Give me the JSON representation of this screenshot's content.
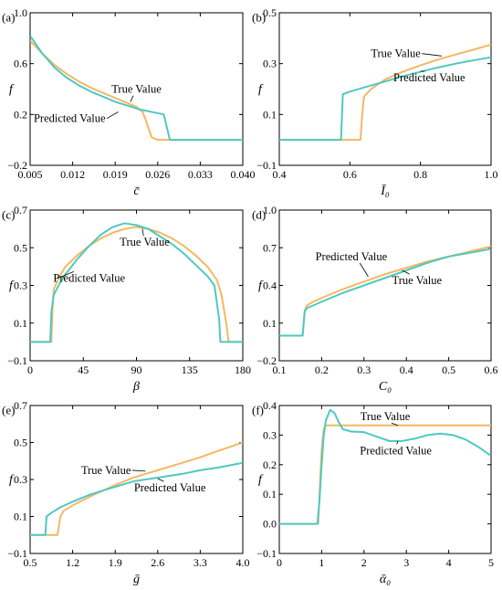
{
  "colors": {
    "true": "#f5b763",
    "predicted": "#4ec9c2",
    "axis": "#000000"
  },
  "chart_data": [
    {
      "id": "a",
      "panel_label": "(a)",
      "type": "line",
      "xlabel": "c̄",
      "ylabel": "f",
      "xlim": [
        0.005,
        0.04
      ],
      "ylim": [
        -0.2,
        1.0
      ],
      "xticks": [
        0.005,
        0.012,
        0.019,
        0.026,
        0.033,
        0.04
      ],
      "xtick_labels": [
        "0.005",
        "0.012",
        "0.019",
        "0.026",
        "0.033",
        "0.040"
      ],
      "yticks": [
        -0.2,
        0.2,
        0.6,
        1.0
      ],
      "ytick_labels": [
        "−0.2",
        "0.2",
        "0.6",
        "1.0"
      ],
      "series": [
        {
          "name": "True Value",
          "color_key": "true",
          "x": [
            0.005,
            0.007,
            0.009,
            0.011,
            0.013,
            0.015,
            0.017,
            0.019,
            0.021,
            0.0225,
            0.0235,
            0.024,
            0.025,
            0.026,
            0.027,
            0.04
          ],
          "y": [
            0.78,
            0.68,
            0.59,
            0.52,
            0.46,
            0.41,
            0.37,
            0.33,
            0.29,
            0.26,
            0.22,
            0.16,
            0.02,
            0.0,
            0.0,
            0.0
          ]
        },
        {
          "name": "Predicted Value",
          "color_key": "predicted",
          "x": [
            0.005,
            0.007,
            0.009,
            0.011,
            0.013,
            0.015,
            0.017,
            0.019,
            0.021,
            0.023,
            0.025,
            0.027,
            0.0275,
            0.028,
            0.04
          ],
          "y": [
            0.82,
            0.68,
            0.57,
            0.49,
            0.43,
            0.38,
            0.34,
            0.3,
            0.27,
            0.24,
            0.22,
            0.2,
            0.1,
            0.0,
            0.0
          ]
        }
      ],
      "annotations": [
        {
          "text": "True Value",
          "x": 0.0225,
          "y": 0.37,
          "ax": 0.0215,
          "ay": 0.3
        },
        {
          "text": "Predicted Value",
          "x": 0.0115,
          "y": 0.14,
          "ax": 0.0195,
          "ay": 0.22
        }
      ]
    },
    {
      "id": "b",
      "panel_label": "(b)",
      "type": "line",
      "xlabel": "Ī₀",
      "ylabel": "f",
      "xlim": [
        0.4,
        1.0
      ],
      "ylim": [
        -0.1,
        0.5
      ],
      "xticks": [
        0.4,
        0.6,
        0.8,
        1.0
      ],
      "xtick_labels": [
        "0.4",
        "0.6",
        "0.8",
        "1.0"
      ],
      "yticks": [
        -0.1,
        0.1,
        0.3,
        0.5
      ],
      "ytick_labels": [
        "−0.1",
        "0.1",
        "0.3",
        "0.5"
      ],
      "series": [
        {
          "name": "True Value",
          "color_key": "true",
          "x": [
            0.4,
            0.63,
            0.635,
            0.64,
            0.66,
            0.7,
            0.75,
            0.8,
            0.85,
            0.9,
            0.95,
            1.0
          ],
          "y": [
            0.0,
            0.0,
            0.1,
            0.17,
            0.2,
            0.238,
            0.268,
            0.293,
            0.316,
            0.336,
            0.355,
            0.375
          ]
        },
        {
          "name": "Predicted Value",
          "color_key": "predicted",
          "x": [
            0.4,
            0.575,
            0.58,
            0.6,
            0.65,
            0.7,
            0.75,
            0.8,
            0.85,
            0.9,
            0.95,
            1.0
          ],
          "y": [
            0.0,
            0.0,
            0.18,
            0.19,
            0.21,
            0.23,
            0.25,
            0.268,
            0.285,
            0.3,
            0.313,
            0.325
          ]
        }
      ],
      "annotations": [
        {
          "text": "True Value",
          "x": 0.73,
          "y": 0.325,
          "ax": 0.86,
          "ay": 0.33
        },
        {
          "text": "Predicted Value",
          "x": 0.825,
          "y": 0.23,
          "ax": 0.8,
          "ay": 0.27
        }
      ]
    },
    {
      "id": "c",
      "panel_label": "(c)",
      "type": "line",
      "xlabel": "β",
      "ylabel": "f",
      "xlim": [
        0,
        180
      ],
      "ylim": [
        -0.1,
        0.7
      ],
      "xticks": [
        0,
        45,
        90,
        135,
        180
      ],
      "xtick_labels": [
        "0",
        "45",
        "90",
        "135",
        "180"
      ],
      "yticks": [
        -0.1,
        0.1,
        0.3,
        0.5,
        0.7
      ],
      "ytick_labels": [
        "−0.1",
        "0.1",
        "0.3",
        "0.5",
        "0.7"
      ],
      "series": [
        {
          "name": "True Value",
          "color_key": "true",
          "x": [
            0,
            18,
            19,
            20,
            25,
            30,
            40,
            50,
            60,
            70,
            80,
            90,
            100,
            110,
            120,
            130,
            140,
            150,
            158,
            162,
            166,
            168,
            180
          ],
          "y": [
            0.0,
            0.0,
            0.18,
            0.28,
            0.35,
            0.4,
            0.46,
            0.51,
            0.55,
            0.58,
            0.6,
            0.61,
            0.6,
            0.58,
            0.55,
            0.51,
            0.46,
            0.4,
            0.33,
            0.25,
            0.1,
            0.0,
            0.0
          ]
        },
        {
          "name": "Predicted Value",
          "color_key": "predicted",
          "x": [
            0,
            17,
            18,
            20,
            25,
            30,
            40,
            50,
            60,
            70,
            80,
            90,
            100,
            110,
            120,
            130,
            140,
            150,
            156,
            160,
            161,
            180
          ],
          "y": [
            0.0,
            0.0,
            0.16,
            0.25,
            0.31,
            0.36,
            0.44,
            0.51,
            0.57,
            0.61,
            0.63,
            0.62,
            0.6,
            0.56,
            0.52,
            0.47,
            0.41,
            0.35,
            0.3,
            0.12,
            0.0,
            0.0
          ]
        }
      ],
      "annotations": [
        {
          "text": "True Value",
          "x": 97,
          "y": 0.51,
          "ax": 95,
          "ay": 0.6
        },
        {
          "text": "Predicted Value",
          "x": 50,
          "y": 0.32,
          "ax": 24,
          "ay": 0.34
        }
      ]
    },
    {
      "id": "d",
      "panel_label": "(d)",
      "type": "line",
      "xlabel": "C₀",
      "ylabel": "f",
      "xlim": [
        0.1,
        0.6
      ],
      "ylim": [
        -0.2,
        1.0
      ],
      "xticks": [
        0.1,
        0.2,
        0.3,
        0.4,
        0.5,
        0.6
      ],
      "xtick_labels": [
        "0.1",
        "0.2",
        "0.3",
        "0.4",
        "0.5",
        "0.6"
      ],
      "yticks": [
        -0.2,
        0.1,
        0.4,
        0.7,
        1.0
      ],
      "ytick_labels": [
        "−0.2",
        "0.1",
        "0.4",
        "0.7",
        "1.0"
      ],
      "series": [
        {
          "name": "True Value",
          "color_key": "true",
          "x": [
            0.1,
            0.155,
            0.16,
            0.165,
            0.18,
            0.2,
            0.25,
            0.3,
            0.35,
            0.4,
            0.45,
            0.5,
            0.55,
            0.6
          ],
          "y": [
            0.0,
            0.0,
            0.2,
            0.24,
            0.27,
            0.3,
            0.37,
            0.43,
            0.49,
            0.54,
            0.59,
            0.63,
            0.67,
            0.71
          ]
        },
        {
          "name": "Predicted Value",
          "color_key": "predicted",
          "x": [
            0.1,
            0.155,
            0.16,
            0.165,
            0.18,
            0.2,
            0.25,
            0.3,
            0.35,
            0.4,
            0.45,
            0.5,
            0.55,
            0.6
          ],
          "y": [
            0.0,
            0.0,
            0.19,
            0.22,
            0.24,
            0.27,
            0.34,
            0.4,
            0.46,
            0.52,
            0.58,
            0.63,
            0.66,
            0.69
          ]
        }
      ],
      "annotations": [
        {
          "text": "Predicted Value",
          "x": 0.27,
          "y": 0.6,
          "ax": 0.31,
          "ay": 0.47
        },
        {
          "text": "True Value",
          "x": 0.425,
          "y": 0.41,
          "ax": 0.39,
          "ay": 0.52
        }
      ]
    },
    {
      "id": "e",
      "panel_label": "(e)",
      "type": "line",
      "xlabel": "ḡ",
      "ylabel": "f",
      "xlim": [
        0.5,
        4.0
      ],
      "ylim": [
        -0.1,
        0.7
      ],
      "xticks": [
        0.5,
        1.2,
        1.9,
        2.6,
        3.3,
        4.0
      ],
      "xtick_labels": [
        "0.5",
        "1.2",
        "1.9",
        "2.6",
        "3.3",
        "4.0"
      ],
      "yticks": [
        -0.1,
        0.1,
        0.3,
        0.5,
        0.7
      ],
      "ytick_labels": [
        "−0.1",
        "0.1",
        "0.3",
        "0.5",
        "0.7"
      ],
      "series": [
        {
          "name": "True Value",
          "color_key": "true",
          "x": [
            0.5,
            0.95,
            1.0,
            1.05,
            1.2,
            1.5,
            1.9,
            2.2,
            2.6,
            3.0,
            3.3,
            3.6,
            4.0
          ],
          "y": [
            0.0,
            0.0,
            0.1,
            0.13,
            0.16,
            0.21,
            0.27,
            0.31,
            0.35,
            0.39,
            0.42,
            0.455,
            0.5
          ]
        },
        {
          "name": "Predicted Value",
          "color_key": "predicted",
          "x": [
            0.5,
            0.75,
            0.77,
            0.85,
            1.0,
            1.2,
            1.5,
            1.9,
            2.2,
            2.6,
            3.0,
            3.3,
            3.6,
            4.0
          ],
          "y": [
            0.0,
            0.0,
            0.1,
            0.12,
            0.15,
            0.18,
            0.22,
            0.26,
            0.29,
            0.31,
            0.33,
            0.35,
            0.365,
            0.39
          ]
        }
      ],
      "annotations": [
        {
          "text": "True Value",
          "x": 1.75,
          "y": 0.33,
          "ax": 2.4,
          "ay": 0.345
        },
        {
          "text": "Predicted Value",
          "x": 2.8,
          "y": 0.235,
          "ax": 2.6,
          "ay": 0.305
        }
      ]
    },
    {
      "id": "f",
      "panel_label": "(f)",
      "type": "line",
      "xlabel": "ᾱ₀",
      "ylabel": "f",
      "xlim": [
        0,
        5
      ],
      "ylim": [
        -0.1,
        0.4
      ],
      "xticks": [
        0,
        1,
        2,
        3,
        4,
        5
      ],
      "xtick_labels": [
        "0",
        "1",
        "2",
        "3",
        "4",
        "5"
      ],
      "yticks": [
        -0.1,
        0.0,
        0.1,
        0.2,
        0.3,
        0.4
      ],
      "ytick_labels": [
        "−0.1",
        "0.0",
        "0.1",
        "0.2",
        "0.3",
        "0.4"
      ],
      "series": [
        {
          "name": "True Value",
          "color_key": "true",
          "x": [
            0,
            0.92,
            0.95,
            1.0,
            1.05,
            1.1,
            5.0
          ],
          "y": [
            0.0,
            0.0,
            0.1,
            0.25,
            0.32,
            0.333,
            0.333
          ]
        },
        {
          "name": "Predicted Value",
          "color_key": "predicted",
          "x": [
            0,
            0.9,
            0.95,
            1.0,
            1.05,
            1.1,
            1.2,
            1.3,
            1.4,
            1.5,
            1.7,
            2.0,
            2.3,
            2.6,
            2.9,
            3.2,
            3.5,
            3.8,
            4.1,
            4.4,
            4.7,
            5.0
          ],
          "y": [
            0.0,
            0.0,
            0.08,
            0.2,
            0.3,
            0.35,
            0.385,
            0.375,
            0.345,
            0.32,
            0.312,
            0.31,
            0.295,
            0.28,
            0.28,
            0.288,
            0.3,
            0.305,
            0.3,
            0.285,
            0.26,
            0.23
          ]
        }
      ],
      "annotations": [
        {
          "text": "True Value",
          "x": 2.5,
          "y": 0.35,
          "ax": 2.8,
          "ay": 0.333
        },
        {
          "text": "Predicted Value",
          "x": 2.75,
          "y": 0.235,
          "ax": 2.8,
          "ay": 0.28
        }
      ]
    }
  ]
}
